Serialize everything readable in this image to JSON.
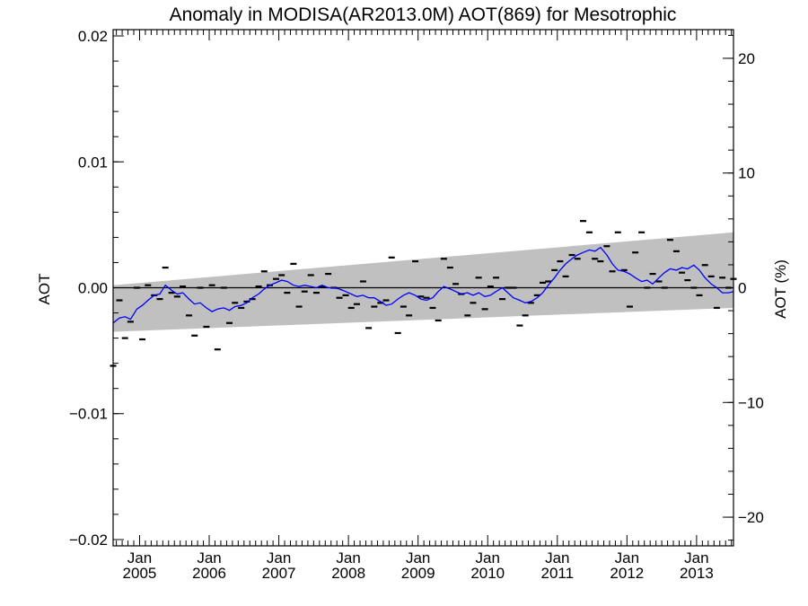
{
  "chart_data": {
    "type": "scatter",
    "title": "Anomaly in MODISA(AR2013.0M) AOT(869) for Mesotrophic",
    "ylabel": "AOT",
    "ylabel_right": "AOT (%)",
    "xlim": [
      2004.62,
      2013.53
    ],
    "ylim": [
      -0.0205,
      0.0205
    ],
    "ylim_right": [
      -22.5,
      22.5
    ],
    "y_ticks": [
      {
        "value": 0.02,
        "label": "0.02"
      },
      {
        "value": 0.01,
        "label": "0.01"
      },
      {
        "value": 0.0,
        "label": "0.00"
      },
      {
        "value": -0.01,
        "label": "−0.01"
      },
      {
        "value": -0.02,
        "label": "−0.02"
      }
    ],
    "y_ticks_right": [
      {
        "value": 20,
        "label": "20"
      },
      {
        "value": 10,
        "label": "10"
      },
      {
        "value": 0,
        "label": "0"
      },
      {
        "value": -10,
        "label": "−10"
      },
      {
        "value": -20,
        "label": "−20"
      }
    ],
    "x_ticks": [
      {
        "value": 2005.0,
        "month": "Jan",
        "year": "2005"
      },
      {
        "value": 2006.0,
        "month": "Jan",
        "year": "2006"
      },
      {
        "value": 2007.0,
        "month": "Jan",
        "year": "2007"
      },
      {
        "value": 2008.0,
        "month": "Jan",
        "year": "2008"
      },
      {
        "value": 2009.0,
        "month": "Jan",
        "year": "2009"
      },
      {
        "value": 2010.0,
        "month": "Jan",
        "year": "2010"
      },
      {
        "value": 2011.0,
        "month": "Jan",
        "year": "2011"
      },
      {
        "value": 2012.0,
        "month": "Jan",
        "year": "2012"
      },
      {
        "value": 2013.0,
        "month": "Jan",
        "year": "2013"
      }
    ],
    "reference_line": 0.0,
    "confidence_band": {
      "start": {
        "x": 2004.62,
        "upper": 0.0002,
        "lower": -0.0035
      },
      "end": {
        "x": 2013.53,
        "upper": 0.0044,
        "lower": -0.0016
      },
      "color": "#c0c0c0"
    },
    "series": [
      {
        "style": "dash-markers",
        "color": "#000000",
        "x": [
          2004.62,
          2004.71,
          2004.79,
          2004.87,
          2004.96,
          2005.04,
          2005.12,
          2005.21,
          2005.29,
          2005.37,
          2005.46,
          2005.54,
          2005.62,
          2005.71,
          2005.79,
          2005.87,
          2005.96,
          2006.04,
          2006.12,
          2006.21,
          2006.29,
          2006.37,
          2006.46,
          2006.54,
          2006.62,
          2006.71,
          2006.79,
          2006.87,
          2006.96,
          2007.04,
          2007.12,
          2007.21,
          2007.29,
          2007.37,
          2007.46,
          2007.54,
          2007.62,
          2007.71,
          2007.79,
          2007.87,
          2007.96,
          2008.04,
          2008.12,
          2008.21,
          2008.29,
          2008.37,
          2008.46,
          2008.54,
          2008.62,
          2008.71,
          2008.79,
          2008.87,
          2008.96,
          2009.04,
          2009.12,
          2009.21,
          2009.29,
          2009.37,
          2009.46,
          2009.54,
          2009.62,
          2009.71,
          2009.79,
          2009.87,
          2009.96,
          2010.04,
          2010.12,
          2010.21,
          2010.29,
          2010.37,
          2010.46,
          2010.54,
          2010.62,
          2010.71,
          2010.79,
          2010.87,
          2010.96,
          2011.04,
          2011.12,
          2011.21,
          2011.29,
          2011.37,
          2011.46,
          2011.54,
          2011.62,
          2011.71,
          2011.79,
          2011.87,
          2011.96,
          2012.04,
          2012.12,
          2012.21,
          2012.29,
          2012.37,
          2012.46,
          2012.54,
          2012.62,
          2012.71,
          2012.79,
          2012.87,
          2012.96,
          2013.04,
          2013.12,
          2013.21,
          2013.29,
          2013.37,
          2013.46,
          2013.53
        ],
        "values": [
          -0.0062,
          -0.001,
          -0.004,
          -0.0027,
          0.0,
          -0.0041,
          0.0002,
          -0.0006,
          -0.0009,
          0.0016,
          -0.0004,
          -0.0007,
          0.0001,
          -0.0022,
          -0.0038,
          0.0,
          -0.0031,
          0.0002,
          -0.0049,
          0.0,
          -0.0028,
          -0.0012,
          -0.0016,
          -0.0011,
          -0.0009,
          0.0001,
          0.0013,
          0.0002,
          0.0007,
          0.001,
          -0.0004,
          0.0019,
          -0.0015,
          -0.0003,
          0.001,
          -0.0004,
          0.0001,
          0.0011,
          0.0,
          -0.0008,
          -0.0006,
          -0.0016,
          -0.0013,
          0.0005,
          -0.0032,
          -0.0015,
          -0.0012,
          -0.001,
          0.0024,
          -0.0036,
          -0.0015,
          -0.0022,
          0.0021,
          -0.0007,
          -0.0008,
          -0.0016,
          -0.0026,
          0.0023,
          0.0016,
          0.0003,
          -0.0005,
          -0.0022,
          -0.0012,
          0.0008,
          -0.0017,
          0.0001,
          0.0008,
          -0.0009,
          0.0,
          0.0,
          -0.003,
          -0.0022,
          -0.0012,
          -0.0006,
          0.0004,
          0.0005,
          0.0014,
          0.0021,
          0.0009,
          0.0026,
          0.0023,
          0.0053,
          0.0044,
          0.0023,
          0.0021,
          0.0033,
          0.0013,
          0.0044,
          0.0014,
          -0.0015,
          0.0028,
          0.0044,
          0.0,
          0.0011,
          0.0005,
          0.0,
          0.0038,
          0.0029,
          0.0012,
          0.0006,
          0.0,
          -0.0006,
          0.0018,
          0.0009,
          -0.0016,
          0.0008,
          0.0,
          0.0007
        ]
      },
      {
        "style": "line",
        "color": "#0000ff",
        "x": [
          2004.62,
          2004.71,
          2004.79,
          2004.87,
          2004.96,
          2005.04,
          2005.12,
          2005.21,
          2005.29,
          2005.37,
          2005.46,
          2005.54,
          2005.62,
          2005.71,
          2005.79,
          2005.87,
          2005.96,
          2006.04,
          2006.12,
          2006.21,
          2006.29,
          2006.37,
          2006.46,
          2006.54,
          2006.62,
          2006.71,
          2006.79,
          2006.87,
          2006.96,
          2007.04,
          2007.12,
          2007.21,
          2007.29,
          2007.37,
          2007.46,
          2007.54,
          2007.62,
          2007.71,
          2007.79,
          2007.87,
          2007.96,
          2008.04,
          2008.12,
          2008.21,
          2008.29,
          2008.37,
          2008.46,
          2008.54,
          2008.62,
          2008.71,
          2008.79,
          2008.87,
          2008.96,
          2009.04,
          2009.12,
          2009.21,
          2009.29,
          2009.37,
          2009.46,
          2009.54,
          2009.62,
          2009.71,
          2009.79,
          2009.87,
          2009.96,
          2010.04,
          2010.12,
          2010.21,
          2010.29,
          2010.37,
          2010.46,
          2010.54,
          2010.62,
          2010.71,
          2010.79,
          2010.87,
          2010.96,
          2011.04,
          2011.12,
          2011.21,
          2011.29,
          2011.37,
          2011.46,
          2011.54,
          2011.62,
          2011.71,
          2011.79,
          2011.87,
          2011.96,
          2012.04,
          2012.12,
          2012.21,
          2012.29,
          2012.37,
          2012.46,
          2012.54,
          2012.62,
          2012.71,
          2012.79,
          2012.87,
          2012.96,
          2013.04,
          2013.12,
          2013.21,
          2013.29,
          2013.37,
          2013.46,
          2013.53
        ],
        "values": [
          -0.0028,
          -0.0024,
          -0.0023,
          -0.0025,
          -0.0017,
          -0.0014,
          -0.001,
          -0.0006,
          -0.0005,
          0.0002,
          -0.0002,
          -0.0005,
          -0.0004,
          -0.0009,
          -0.0013,
          -0.0012,
          -0.0016,
          -0.0019,
          -0.0017,
          -0.0016,
          -0.0018,
          -0.0015,
          -0.0014,
          -0.0012,
          -0.0008,
          -0.0005,
          -0.0001,
          0.0002,
          0.0004,
          0.0006,
          0.0005,
          0.0002,
          0.0001,
          0.0002,
          0.0001,
          0.0,
          0.0002,
          0.0,
          0.0,
          -0.0001,
          -0.0003,
          -0.0005,
          -0.0007,
          -0.0006,
          -0.0008,
          -0.0008,
          -0.0011,
          -0.0014,
          -0.0013,
          -0.0009,
          -0.0006,
          -0.0004,
          -0.0006,
          -0.0009,
          -0.001,
          -0.0008,
          -0.0003,
          0.0001,
          -0.0001,
          -0.0003,
          -0.0005,
          -0.0004,
          -0.0006,
          -0.0004,
          -0.0007,
          -0.0006,
          -0.0003,
          0.0,
          -0.0004,
          -0.0008,
          -0.001,
          -0.0012,
          -0.0011,
          -0.0008,
          -0.0004,
          0.0002,
          0.0008,
          0.0014,
          0.0019,
          0.0023,
          0.0026,
          0.0028,
          0.003,
          0.0029,
          0.0032,
          0.0026,
          0.0019,
          0.0014,
          0.0013,
          0.0011,
          0.0008,
          0.0005,
          0.0006,
          0.0003,
          0.0008,
          0.0012,
          0.0015,
          0.0014,
          0.0016,
          0.0015,
          0.0018,
          0.0014,
          0.0008,
          0.0003,
          0.0,
          -0.0004,
          -0.0004,
          -0.0003
        ]
      }
    ],
    "grid": false
  }
}
